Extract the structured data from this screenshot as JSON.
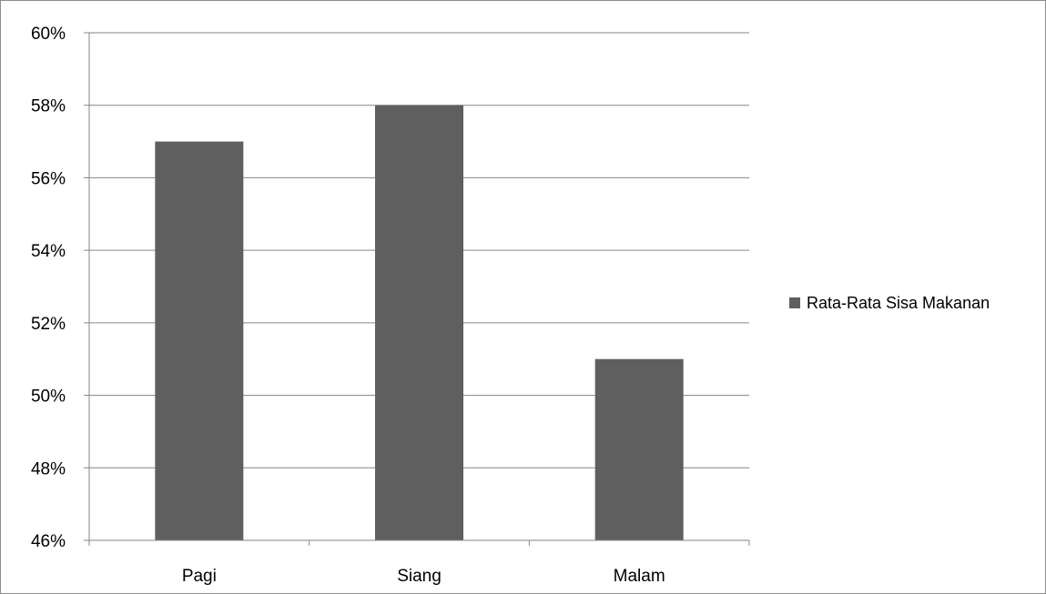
{
  "chart_data": {
    "type": "bar",
    "categories": [
      "Pagi",
      "Siang",
      "Malam"
    ],
    "series": [
      {
        "name": "Rata-Rata Sisa Makanan",
        "values": [
          57,
          58,
          51
        ],
        "color": "#5f5f5f"
      }
    ],
    "value_unit": "%",
    "ylim": [
      46,
      60
    ],
    "y_ticks": [
      46,
      48,
      50,
      52,
      54,
      56,
      58,
      60
    ],
    "y_tick_labels": [
      "46%",
      "48%",
      "50%",
      "52%",
      "54%",
      "56%",
      "58%",
      "60%"
    ],
    "grid": true,
    "legend": "right",
    "colors": {
      "bar": "#5f5f5f",
      "grid": "#868686",
      "axis": "#868686",
      "text": "#000000"
    }
  }
}
